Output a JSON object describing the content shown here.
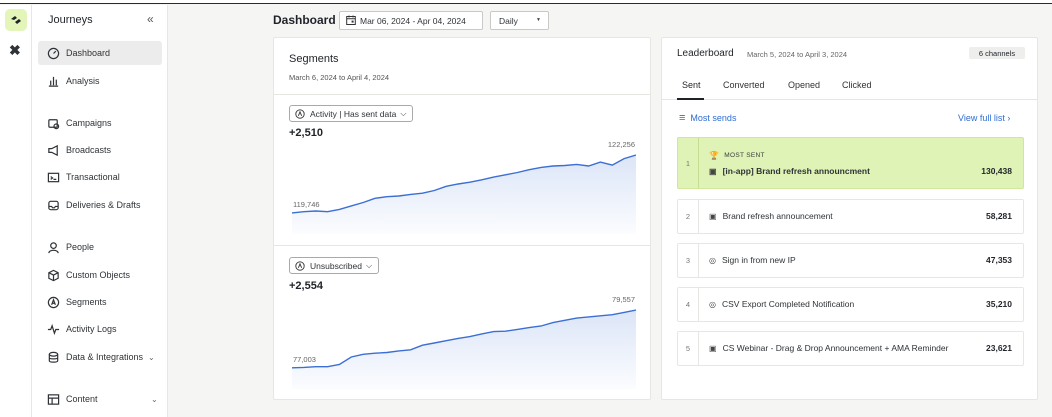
{
  "app": {
    "section_title": "Journeys"
  },
  "sidebar": {
    "items": [
      {
        "label": "Dashboard",
        "icon": "dashboard-icon",
        "active": true
      },
      {
        "label": "Analysis",
        "icon": "bar-chart-icon"
      },
      {
        "label": "Campaigns",
        "icon": "campaigns-icon"
      },
      {
        "label": "Broadcasts",
        "icon": "megaphone-icon"
      },
      {
        "label": "Transactional",
        "icon": "terminal-icon"
      },
      {
        "label": "Deliveries & Drafts",
        "icon": "inbox-icon"
      },
      {
        "label": "People",
        "icon": "person-icon"
      },
      {
        "label": "Custom Objects",
        "icon": "cube-icon"
      },
      {
        "label": "Segments",
        "icon": "segment-icon"
      },
      {
        "label": "Activity Logs",
        "icon": "activity-icon"
      },
      {
        "label": "Data & Integrations",
        "icon": "database-icon",
        "chevron": "⌄"
      },
      {
        "label": "Content",
        "icon": "layout-icon",
        "chevron": "⌄"
      }
    ]
  },
  "header": {
    "title": "Dashboard",
    "date_range": "Mar 06, 2024 - Apr 04, 2024",
    "period": "Daily"
  },
  "segments": {
    "title": "Segments",
    "date_range": "March 6, 2024 to April 4, 2024",
    "panels": [
      {
        "filter_label": "Activity | Has sent data",
        "delta": "+2,510",
        "start_label": "119,746",
        "end_label": "122,256"
      },
      {
        "filter_label": "Unsubscribed",
        "delta": "+2,554",
        "start_label": "77,003",
        "end_label": "79,557"
      }
    ]
  },
  "chart_data": [
    {
      "type": "area",
      "title": "Activity | Has sent data",
      "x": [
        1,
        2,
        3,
        4,
        5,
        6,
        7,
        8,
        9,
        10,
        11,
        12,
        13,
        14,
        15,
        16,
        17,
        18,
        19,
        20,
        21,
        22,
        23,
        24,
        25,
        26,
        27,
        28,
        29,
        30
      ],
      "series": [
        {
          "values": [
            119746,
            119800,
            119830,
            119800,
            119900,
            120050,
            120200,
            120380,
            120450,
            120480,
            120550,
            120600,
            120720,
            120900,
            121000,
            121080,
            121180,
            121300,
            121400,
            121500,
            121620,
            121720,
            121780,
            121800,
            121850,
            121780,
            121950,
            121820,
            122100,
            122256
          ]
        }
      ],
      "ylim": [
        119700,
        122300
      ],
      "color": "#3b6fd4"
    },
    {
      "type": "area",
      "title": "Unsubscribed",
      "x": [
        1,
        2,
        3,
        4,
        5,
        6,
        7,
        8,
        9,
        10,
        11,
        12,
        13,
        14,
        15,
        16,
        17,
        18,
        19,
        20,
        21,
        22,
        23,
        24,
        25,
        26,
        27,
        28,
        29,
        30
      ],
      "series": [
        {
          "values": [
            77003,
            77020,
            77050,
            77050,
            77150,
            77480,
            77600,
            77650,
            77680,
            77750,
            77800,
            78000,
            78100,
            78200,
            78300,
            78380,
            78500,
            78600,
            78620,
            78700,
            78780,
            78850,
            79000,
            79100,
            79200,
            79250,
            79300,
            79350,
            79450,
            79557
          ]
        }
      ],
      "ylim": [
        76950,
        79600
      ],
      "color": "#3b6fd4"
    }
  ],
  "leaderboard": {
    "title": "Leaderboard",
    "range": "March 5, 2024 to April 3, 2024",
    "badge": "6 channels",
    "tabs": [
      "Sent",
      "Converted",
      "Opened",
      "Clicked"
    ],
    "active_tab": "Sent",
    "sort_label": "Most sends",
    "view_full": "View full list",
    "most_sent_label": "MOST SENT",
    "rows": [
      {
        "rank": "1",
        "name": "[in-app] Brand refresh announcment",
        "value": "130,438",
        "icon": "in-app-icon"
      },
      {
        "rank": "2",
        "name": "Brand refresh announcement",
        "value": "58,281",
        "icon": "in-app-icon"
      },
      {
        "rank": "3",
        "name": "Sign in from new IP",
        "value": "47,353",
        "icon": "email-icon"
      },
      {
        "rank": "4",
        "name": "CSV Export Completed Notification",
        "value": "35,210",
        "icon": "email-icon"
      },
      {
        "rank": "5",
        "name": "CS Webinar - Drag & Drop Announcement + AMA Reminder",
        "value": "23,621",
        "icon": "in-app-icon"
      }
    ],
    "accent": "#2e6dd2",
    "top_row_color": "#dff3b6"
  }
}
